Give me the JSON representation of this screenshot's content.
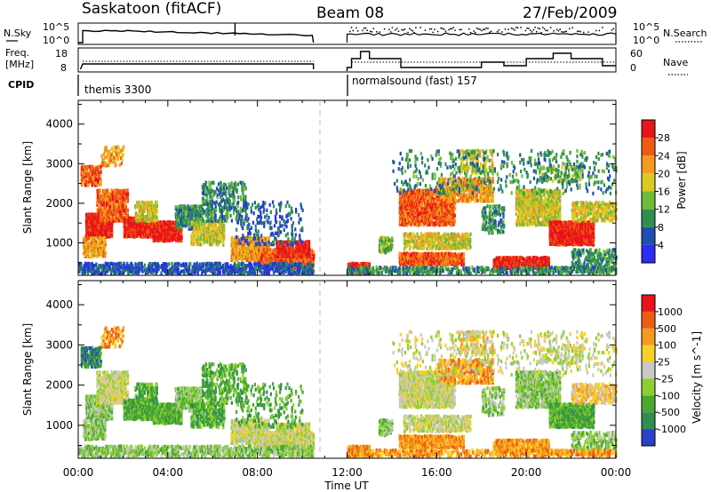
{
  "header": {
    "station": "Saskatoon (fitACF)",
    "beam": "Beam 08",
    "date": "27/Feb/2009"
  },
  "strip_panels": {
    "nsky": {
      "left_label": "N.Sky",
      "right_label": "N.Search",
      "left_ticks": [
        "10^5",
        "10^0"
      ],
      "right_ticks": [
        "10^5",
        "10^0"
      ]
    },
    "freq": {
      "left_label_1": "Freq.",
      "left_label_2": "[MHz]",
      "right_label": "Nave",
      "left_ticks": [
        "18",
        "8"
      ],
      "right_ticks": [
        "60",
        "0"
      ]
    },
    "cpid": {
      "label": "CPID",
      "segments": [
        {
          "name": "themis 3300",
          "start_hour": 0
        },
        {
          "name": "normalsound (fast) 157",
          "start_hour": 12
        }
      ]
    }
  },
  "chart_data": [
    {
      "type": "heatmap",
      "name": "power",
      "ylabel": "Slant Range [km]",
      "xlabel": "",
      "x_range_hours": [
        0,
        24
      ],
      "ylim": [
        180,
        4600
      ],
      "y_ticks": [
        1000,
        2000,
        3000,
        4000
      ],
      "colorbar": {
        "label": "Power [dB]",
        "ticks": [
          4,
          8,
          12,
          16,
          20,
          24,
          28
        ],
        "colors": [
          "#2a2df5",
          "#1f4fb0",
          "#2e8f4f",
          "#6fbb3a",
          "#d8cc22",
          "#f59a1f",
          "#ef5a12",
          "#e8141a"
        ]
      }
    },
    {
      "type": "heatmap",
      "name": "velocity",
      "ylabel": "Slant Range [km]",
      "xlabel": "Time UT",
      "x_range_hours": [
        0,
        24
      ],
      "x_tick_labels": [
        "00:00",
        "04:00",
        "08:00",
        "12:00",
        "16:00",
        "20:00",
        "00:00"
      ],
      "ylim": [
        180,
        4600
      ],
      "y_ticks": [
        1000,
        2000,
        3000,
        4000
      ],
      "colorbar": {
        "label": "Velocity [m s^-1]",
        "ticks": [
          "1000",
          "500",
          "100",
          "25",
          "-25",
          "-100",
          "-500",
          "-1000"
        ],
        "colors": [
          "#2a42c8",
          "#2e8f4f",
          "#4aa830",
          "#8cd030",
          "#c8c8c8",
          "#f7d028",
          "#f59a1f",
          "#ef5a12",
          "#e8141a"
        ]
      }
    }
  ]
}
